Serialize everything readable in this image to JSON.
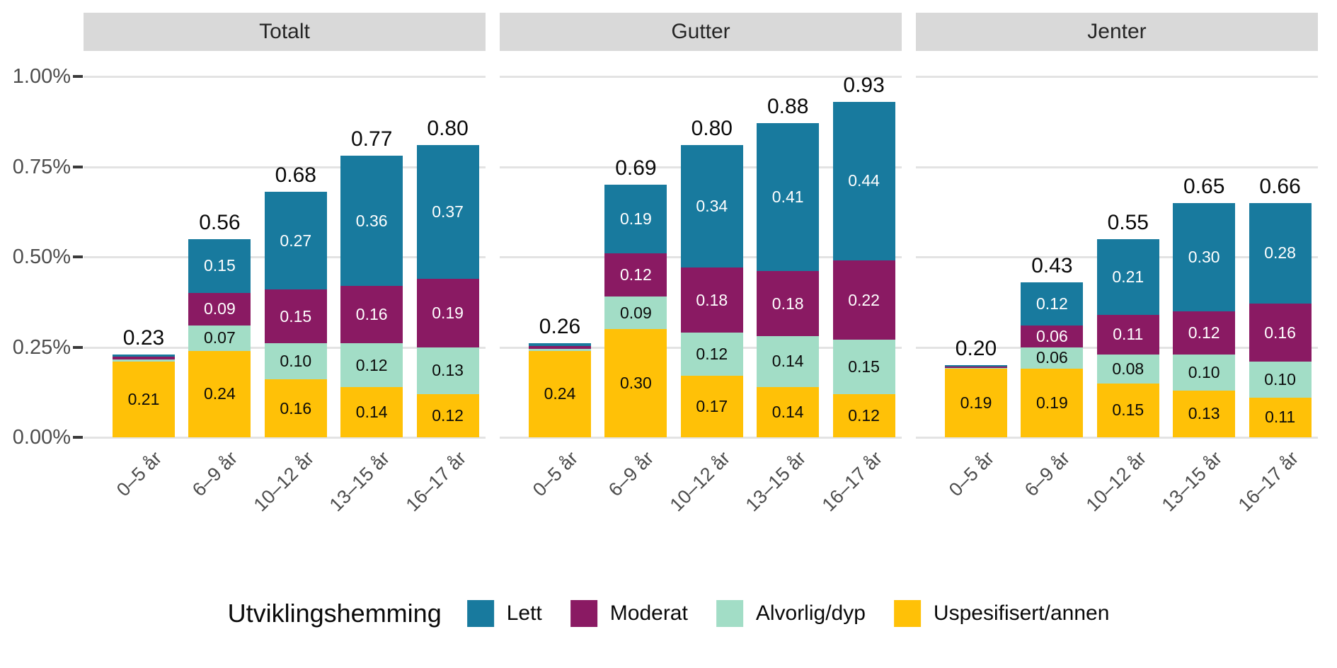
{
  "figure": {
    "colors": {
      "lett": "#187A9E",
      "moderat": "#8A1A63",
      "alvorlig_dyp": "#A2DDC6",
      "uspesifisert_annen": "#FFC107",
      "strip_bg": "#D9D9D9",
      "grid": "#E3E3E3",
      "axis_text": "#4D4D4D",
      "label_dark": "#0A0A0A",
      "label_light": "#FFFFFF"
    }
  },
  "chart_data": {
    "type": "bar",
    "stacked": true,
    "grid": "horizontal",
    "facets": [
      "Totalt",
      "Gutter",
      "Jenter"
    ],
    "categories": [
      "0–5 år",
      "6–9 år",
      "10–12 år",
      "13–15 år",
      "16–17 år"
    ],
    "y_unit": "%",
    "ylim": [
      0,
      1.0
    ],
    "y_ticks": [
      {
        "label": "1.00%",
        "value": 1.0
      },
      {
        "label": "0.75%",
        "value": 0.75
      },
      {
        "label": "0.50%",
        "value": 0.5
      },
      {
        "label": "0.25%",
        "value": 0.25
      },
      {
        "label": "0.00%",
        "value": 0.0
      }
    ],
    "stack_order_bottom_to_top": [
      "uspesifisert_annen",
      "alvorlig_dyp",
      "moderat",
      "lett"
    ],
    "series_label_text_color": {
      "lett": "light",
      "moderat": "light",
      "alvorlig_dyp": "dark",
      "uspesifisert_annen": "dark"
    },
    "legend": {
      "title": "Utviklingshemming",
      "position": "bottom",
      "items": [
        {
          "key": "lett",
          "label": "Lett"
        },
        {
          "key": "moderat",
          "label": "Moderat"
        },
        {
          "key": "alvorlig_dyp",
          "label": "Alvorlig/dyp"
        },
        {
          "key": "uspesifisert_annen",
          "label": "Uspesifisert/annen"
        }
      ]
    },
    "panels": [
      {
        "title": "Totalt",
        "bars": [
          {
            "category": "0–5 år",
            "total_label": "0.23",
            "segments": [
              {
                "key": "uspesifisert_annen",
                "value": 0.21,
                "label": "0.21"
              },
              {
                "key": "alvorlig_dyp",
                "value": 0.005,
                "label": ""
              },
              {
                "key": "moderat",
                "value": 0.008,
                "label": ""
              },
              {
                "key": "lett",
                "value": 0.007,
                "label": ""
              }
            ]
          },
          {
            "category": "6–9 år",
            "total_label": "0.56",
            "segments": [
              {
                "key": "uspesifisert_annen",
                "value": 0.24,
                "label": "0.24"
              },
              {
                "key": "alvorlig_dyp",
                "value": 0.07,
                "label": "0.07"
              },
              {
                "key": "moderat",
                "value": 0.09,
                "label": "0.09"
              },
              {
                "key": "lett",
                "value": 0.15,
                "label": "0.15"
              }
            ]
          },
          {
            "category": "10–12 år",
            "total_label": "0.68",
            "segments": [
              {
                "key": "uspesifisert_annen",
                "value": 0.16,
                "label": "0.16"
              },
              {
                "key": "alvorlig_dyp",
                "value": 0.1,
                "label": "0.10"
              },
              {
                "key": "moderat",
                "value": 0.15,
                "label": "0.15"
              },
              {
                "key": "lett",
                "value": 0.27,
                "label": "0.27"
              }
            ]
          },
          {
            "category": "13–15 år",
            "total_label": "0.77",
            "segments": [
              {
                "key": "uspesifisert_annen",
                "value": 0.14,
                "label": "0.14"
              },
              {
                "key": "alvorlig_dyp",
                "value": 0.12,
                "label": "0.12"
              },
              {
                "key": "moderat",
                "value": 0.16,
                "label": "0.16"
              },
              {
                "key": "lett",
                "value": 0.36,
                "label": "0.36"
              }
            ]
          },
          {
            "category": "16–17 år",
            "total_label": "0.80",
            "segments": [
              {
                "key": "uspesifisert_annen",
                "value": 0.12,
                "label": "0.12"
              },
              {
                "key": "alvorlig_dyp",
                "value": 0.13,
                "label": "0.13"
              },
              {
                "key": "moderat",
                "value": 0.19,
                "label": "0.19"
              },
              {
                "key": "lett",
                "value": 0.37,
                "label": "0.37"
              }
            ]
          }
        ]
      },
      {
        "title": "Gutter",
        "bars": [
          {
            "category": "0–5 år",
            "total_label": "0.26",
            "segments": [
              {
                "key": "uspesifisert_annen",
                "value": 0.24,
                "label": "0.24"
              },
              {
                "key": "alvorlig_dyp",
                "value": 0.006,
                "label": ""
              },
              {
                "key": "moderat",
                "value": 0.007,
                "label": ""
              },
              {
                "key": "lett",
                "value": 0.007,
                "label": ""
              }
            ]
          },
          {
            "category": "6–9 år",
            "total_label": "0.69",
            "segments": [
              {
                "key": "uspesifisert_annen",
                "value": 0.3,
                "label": "0.30"
              },
              {
                "key": "alvorlig_dyp",
                "value": 0.09,
                "label": "0.09"
              },
              {
                "key": "moderat",
                "value": 0.12,
                "label": "0.12"
              },
              {
                "key": "lett",
                "value": 0.19,
                "label": "0.19"
              }
            ]
          },
          {
            "category": "10–12 år",
            "total_label": "0.80",
            "segments": [
              {
                "key": "uspesifisert_annen",
                "value": 0.17,
                "label": "0.17"
              },
              {
                "key": "alvorlig_dyp",
                "value": 0.12,
                "label": "0.12"
              },
              {
                "key": "moderat",
                "value": 0.18,
                "label": "0.18"
              },
              {
                "key": "lett",
                "value": 0.34,
                "label": "0.34"
              }
            ]
          },
          {
            "category": "13–15 år",
            "total_label": "0.88",
            "segments": [
              {
                "key": "uspesifisert_annen",
                "value": 0.14,
                "label": "0.14"
              },
              {
                "key": "alvorlig_dyp",
                "value": 0.14,
                "label": "0.14"
              },
              {
                "key": "moderat",
                "value": 0.18,
                "label": "0.18"
              },
              {
                "key": "lett",
                "value": 0.41,
                "label": "0.41"
              }
            ]
          },
          {
            "category": "16–17 år",
            "total_label": "0.93",
            "segments": [
              {
                "key": "uspesifisert_annen",
                "value": 0.12,
                "label": "0.12"
              },
              {
                "key": "alvorlig_dyp",
                "value": 0.15,
                "label": "0.15"
              },
              {
                "key": "moderat",
                "value": 0.22,
                "label": "0.22"
              },
              {
                "key": "lett",
                "value": 0.44,
                "label": "0.44"
              }
            ]
          }
        ]
      },
      {
        "title": "Jenter",
        "bars": [
          {
            "category": "0–5 år",
            "total_label": "0.20",
            "segments": [
              {
                "key": "uspesifisert_annen",
                "value": 0.19,
                "label": "0.19"
              },
              {
                "key": "alvorlig_dyp",
                "value": 0.003,
                "label": ""
              },
              {
                "key": "moderat",
                "value": 0.004,
                "label": ""
              },
              {
                "key": "lett",
                "value": 0.003,
                "label": ""
              }
            ]
          },
          {
            "category": "6–9 år",
            "total_label": "0.43",
            "segments": [
              {
                "key": "uspesifisert_annen",
                "value": 0.19,
                "label": "0.19"
              },
              {
                "key": "alvorlig_dyp",
                "value": 0.06,
                "label": "0.06"
              },
              {
                "key": "moderat",
                "value": 0.06,
                "label": "0.06"
              },
              {
                "key": "lett",
                "value": 0.12,
                "label": "0.12"
              }
            ]
          },
          {
            "category": "10–12 år",
            "total_label": "0.55",
            "segments": [
              {
                "key": "uspesifisert_annen",
                "value": 0.15,
                "label": "0.15"
              },
              {
                "key": "alvorlig_dyp",
                "value": 0.08,
                "label": "0.08"
              },
              {
                "key": "moderat",
                "value": 0.11,
                "label": "0.11"
              },
              {
                "key": "lett",
                "value": 0.21,
                "label": "0.21"
              }
            ]
          },
          {
            "category": "13–15 år",
            "total_label": "0.65",
            "segments": [
              {
                "key": "uspesifisert_annen",
                "value": 0.13,
                "label": "0.13"
              },
              {
                "key": "alvorlig_dyp",
                "value": 0.1,
                "label": "0.10"
              },
              {
                "key": "moderat",
                "value": 0.12,
                "label": "0.12"
              },
              {
                "key": "lett",
                "value": 0.3,
                "label": "0.30"
              }
            ]
          },
          {
            "category": "16–17 år",
            "total_label": "0.66",
            "segments": [
              {
                "key": "uspesifisert_annen",
                "value": 0.11,
                "label": "0.11"
              },
              {
                "key": "alvorlig_dyp",
                "value": 0.1,
                "label": "0.10"
              },
              {
                "key": "moderat",
                "value": 0.16,
                "label": "0.16"
              },
              {
                "key": "lett",
                "value": 0.28,
                "label": "0.28"
              }
            ]
          }
        ]
      }
    ]
  }
}
